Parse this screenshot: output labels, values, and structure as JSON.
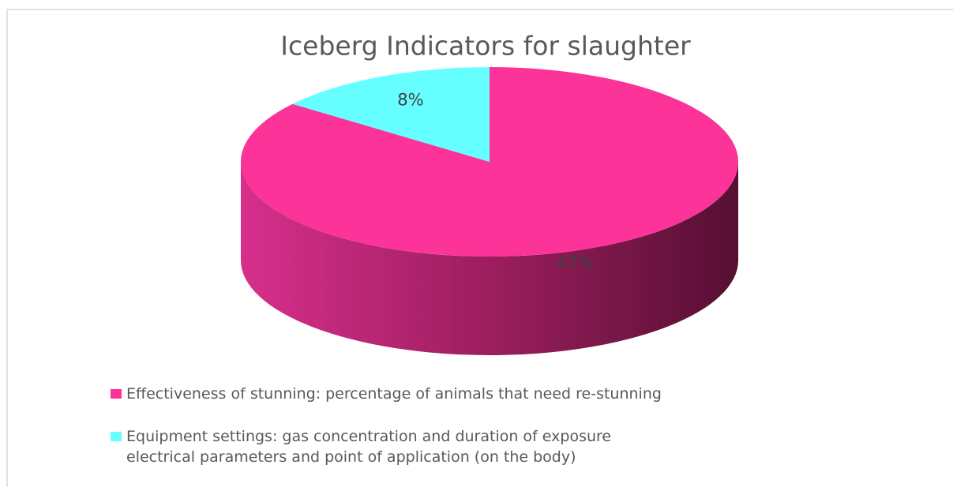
{
  "chart_data": {
    "type": "pie3d",
    "title": "Iceberg Indicators for slaughter",
    "categories": [
      "Effectiveness of stunning: percentage of animals that need re-stunning",
      "Equipment settings: gas concentration and duration of exposure electrical parameters and point of application (on the body)"
    ],
    "values": [
      47,
      8
    ],
    "value_labels": [
      "47%",
      "8%"
    ],
    "colors": [
      "#fc3399",
      "#66ffff"
    ],
    "legend": "bottom"
  }
}
